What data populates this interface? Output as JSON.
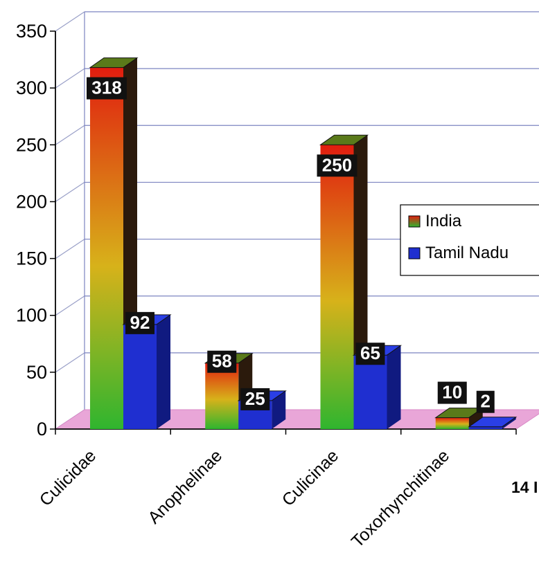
{
  "chart_data": {
    "type": "bar",
    "categories": [
      "Culicidae",
      "Anophelinae",
      "Culicinae",
      "Toxorhynchitinae"
    ],
    "series": [
      {
        "name": "India",
        "values": [
          318,
          58,
          250,
          10
        ],
        "color": "gradient-green-red"
      },
      {
        "name": "Tamil Nadu",
        "values": [
          92,
          25,
          65,
          2
        ],
        "color": "#1f2fd0"
      }
    ],
    "yticks": [
      "0",
      "50",
      "100",
      "150",
      "200",
      "250",
      "300",
      "350"
    ],
    "ylim": [
      0,
      350
    ],
    "grid": true,
    "floor_color": "#e9a6d8",
    "legend_position": "right",
    "footnote": "14 I"
  }
}
